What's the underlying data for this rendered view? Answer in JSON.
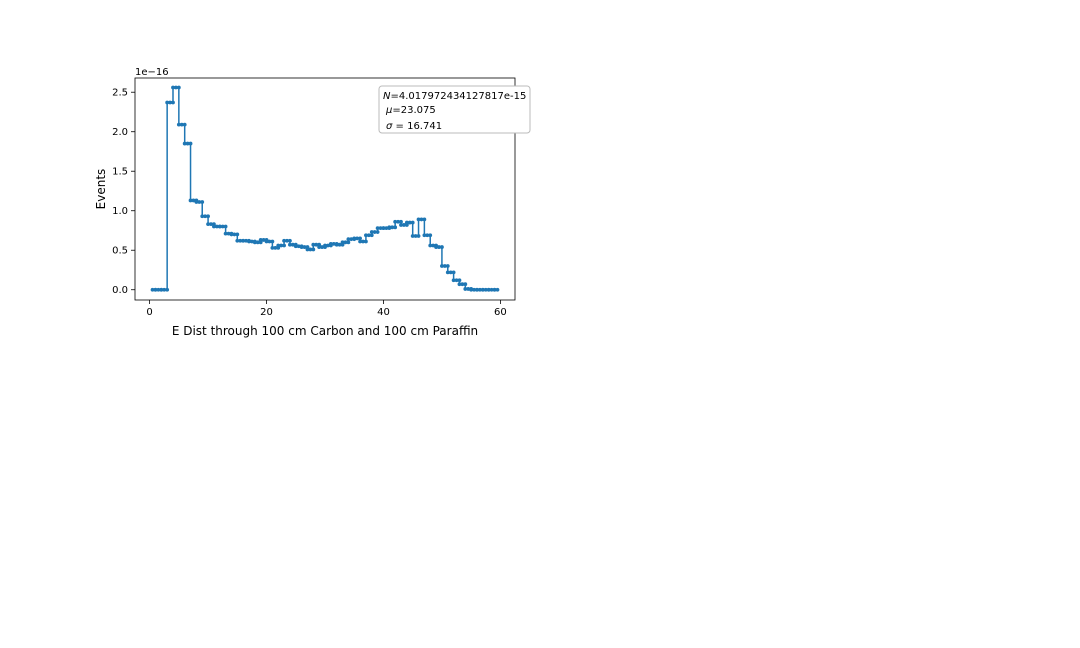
{
  "chart_data": {
    "type": "line",
    "drawstyle": "steps-mid",
    "marker": "dot",
    "xlabel": "E Dist through 100 cm Carbon and 100 cm Paraffin",
    "ylabel": "Events",
    "offset_text": "1e−16",
    "xlim": [
      -2.5,
      62.5
    ],
    "ylim": [
      -0.13,
      2.68
    ],
    "xticks": [
      0,
      20,
      40,
      60
    ],
    "xtick_labels": [
      "0",
      "20",
      "40",
      "60"
    ],
    "yticks": [
      0.0,
      0.5,
      1.0,
      1.5,
      2.0,
      2.5
    ],
    "ytick_labels": [
      "0.0",
      "0.5",
      "1.0",
      "1.5",
      "2.0",
      "2.5"
    ],
    "grid": false,
    "color": "#1f77b4",
    "legend": {
      "placement": "top-right",
      "N_prefix": "N",
      "N_value": "=4.017972434127817e-15",
      "mu_prefix": "μ",
      "mu_value": "=23.075",
      "sigma_prefix": "σ",
      "sigma_value": " = 16.741"
    },
    "series": [
      {
        "x": [
          0.5,
          1.5,
          2.5,
          3.5,
          4.5,
          5.5,
          6.5,
          7.5,
          8.5,
          9.5,
          10.5,
          11.5,
          12.5,
          13.5,
          14.5,
          15.5,
          16.5,
          17.5,
          18.5,
          19.5,
          20.5,
          21.5,
          22.5,
          23.5,
          24.5,
          25.5,
          26.5,
          27.5,
          28.5,
          29.5,
          30.5,
          31.5,
          32.5,
          33.5,
          34.5,
          35.5,
          36.5,
          37.5,
          38.5,
          39.5,
          40.5,
          41.5,
          42.5,
          43.5,
          44.5,
          45.5,
          46.5,
          47.5,
          48.5,
          49.5,
          50.5,
          51.5,
          52.5,
          53.5,
          54.5,
          55.5,
          56.5,
          57.5,
          58.5,
          59.5
        ],
        "y": [
          0.0,
          0.0,
          0.0,
          2.37,
          2.56,
          2.09,
          1.85,
          1.13,
          1.11,
          0.93,
          0.83,
          0.8,
          0.8,
          0.71,
          0.7,
          0.62,
          0.62,
          0.61,
          0.6,
          0.63,
          0.61,
          0.53,
          0.56,
          0.62,
          0.57,
          0.55,
          0.54,
          0.51,
          0.57,
          0.54,
          0.56,
          0.58,
          0.57,
          0.6,
          0.64,
          0.65,
          0.61,
          0.69,
          0.73,
          0.78,
          0.78,
          0.79,
          0.86,
          0.82,
          0.85,
          0.68,
          0.89,
          0.69,
          0.56,
          0.54,
          0.3,
          0.22,
          0.12,
          0.07,
          0.01,
          0.0,
          0.0,
          0.0,
          0.0,
          0.0
        ]
      }
    ]
  }
}
